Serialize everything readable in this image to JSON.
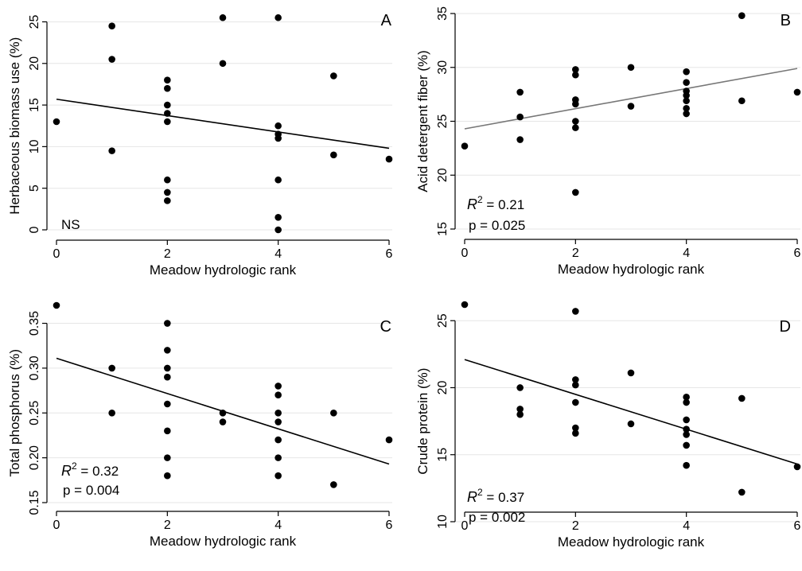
{
  "chart_data": [
    {
      "panel_letter": "A",
      "type": "scatter",
      "xlabel": "Meadow hydrologic rank",
      "ylabel": "Herbaceous biomass use (%)",
      "xlim": [
        0,
        6
      ],
      "ylim": [
        0,
        26
      ],
      "xticks": [
        "0",
        "2",
        "4",
        "6"
      ],
      "yticks": [
        "0",
        "5",
        "10",
        "15",
        "20",
        "25"
      ],
      "grid": "horizontal",
      "points": [
        [
          0,
          13
        ],
        [
          1,
          24.5
        ],
        [
          1,
          20.5
        ],
        [
          1,
          9.5
        ],
        [
          2,
          18
        ],
        [
          2,
          17
        ],
        [
          2,
          15
        ],
        [
          2,
          14
        ],
        [
          2,
          13
        ],
        [
          2,
          6
        ],
        [
          2,
          4.5
        ],
        [
          2,
          3.5
        ],
        [
          3,
          25.5
        ],
        [
          3,
          20
        ],
        [
          4,
          25.5
        ],
        [
          4,
          12.5
        ],
        [
          4,
          11.5
        ],
        [
          4,
          11
        ],
        [
          4,
          6
        ],
        [
          4,
          1.5
        ],
        [
          4,
          0
        ],
        [
          5,
          18.5
        ],
        [
          5,
          9
        ],
        [
          6,
          8.5
        ]
      ],
      "fit_line": {
        "x": [
          0,
          6
        ],
        "y": [
          15.7,
          9.8
        ],
        "color": "#000000"
      },
      "annotation": {
        "r2": "",
        "p": "",
        "ns": "NS"
      }
    },
    {
      "panel_letter": "B",
      "type": "scatter",
      "xlabel": "Meadow hydrologic rank",
      "ylabel": "Acid detergent fiber (%)",
      "xlim": [
        0,
        6
      ],
      "ylim": [
        15,
        35
      ],
      "xticks": [
        "0",
        "2",
        "4",
        "6"
      ],
      "yticks": [
        "15",
        "20",
        "25",
        "30",
        "35"
      ],
      "grid": "horizontal",
      "points": [
        [
          0,
          22.7
        ],
        [
          1,
          27.7
        ],
        [
          1,
          25.4
        ],
        [
          1,
          23.3
        ],
        [
          2,
          29.8
        ],
        [
          2,
          29.3
        ],
        [
          2,
          27
        ],
        [
          2,
          26.6
        ],
        [
          2,
          25
        ],
        [
          2,
          24.4
        ],
        [
          2,
          18.4
        ],
        [
          3,
          30
        ],
        [
          3,
          26.4
        ],
        [
          4,
          29.6
        ],
        [
          4,
          28.6
        ],
        [
          4,
          27.8
        ],
        [
          4,
          27.4
        ],
        [
          4,
          26.9
        ],
        [
          4,
          26.2
        ],
        [
          4,
          25.7
        ],
        [
          5,
          34.8
        ],
        [
          5,
          26.9
        ],
        [
          6,
          27.7
        ]
      ],
      "fit_line": {
        "x": [
          0,
          6
        ],
        "y": [
          24.3,
          29.9
        ],
        "color": "#777777"
      },
      "annotation": {
        "r2": "0.21",
        "p": "p = 0.025",
        "ns": ""
      }
    },
    {
      "panel_letter": "C",
      "type": "scatter",
      "xlabel": "Meadow hydrologic rank",
      "ylabel": "Total phosphorus (%)",
      "xlim": [
        0,
        6
      ],
      "ylim": [
        0.15,
        0.37
      ],
      "xticks": [
        "0",
        "2",
        "4",
        "6"
      ],
      "yticks": [
        "0.15",
        "0.20",
        "0.25",
        "0.30",
        "0.35"
      ],
      "grid": "horizontal",
      "points": [
        [
          0,
          0.37
        ],
        [
          1,
          0.3
        ],
        [
          1,
          0.25
        ],
        [
          2,
          0.35
        ],
        [
          2,
          0.32
        ],
        [
          2,
          0.3
        ],
        [
          2,
          0.29
        ],
        [
          2,
          0.26
        ],
        [
          2,
          0.23
        ],
        [
          2,
          0.2
        ],
        [
          2,
          0.18
        ],
        [
          3,
          0.25
        ],
        [
          3,
          0.24
        ],
        [
          4,
          0.28
        ],
        [
          4,
          0.27
        ],
        [
          4,
          0.25
        ],
        [
          4,
          0.24
        ],
        [
          4,
          0.22
        ],
        [
          4,
          0.2
        ],
        [
          4,
          0.18
        ],
        [
          5,
          0.25
        ],
        [
          5,
          0.17
        ],
        [
          6,
          0.22
        ]
      ],
      "fit_line": {
        "x": [
          0,
          6
        ],
        "y": [
          0.311,
          0.193
        ],
        "color": "#000000"
      },
      "annotation": {
        "r2": "0.32",
        "p": "p = 0.004",
        "ns": ""
      }
    },
    {
      "panel_letter": "D",
      "type": "scatter",
      "xlabel": "Meadow hydrologic rank",
      "ylabel": "Crude protein (%)",
      "xlim": [
        0,
        6
      ],
      "ylim": [
        10,
        26.2
      ],
      "xticks": [
        "0",
        "2",
        "4",
        "6"
      ],
      "yticks": [
        "10",
        "15",
        "20",
        "25"
      ],
      "grid": "horizontal",
      "points": [
        [
          0,
          26.2
        ],
        [
          1,
          20
        ],
        [
          1,
          18.4
        ],
        [
          1,
          18
        ],
        [
          2,
          25.7
        ],
        [
          2,
          20.6
        ],
        [
          2,
          20.2
        ],
        [
          2,
          18.9
        ],
        [
          2,
          17
        ],
        [
          2,
          16.6
        ],
        [
          3,
          21.1
        ],
        [
          3,
          17.3
        ],
        [
          4,
          19.3
        ],
        [
          4,
          18.9
        ],
        [
          4,
          17.6
        ],
        [
          4,
          16.9
        ],
        [
          4,
          16.5
        ],
        [
          4,
          15.7
        ],
        [
          4,
          14.2
        ],
        [
          5,
          19.2
        ],
        [
          5,
          12.2
        ],
        [
          6,
          14.1
        ]
      ],
      "fit_line": {
        "x": [
          0,
          6
        ],
        "y": [
          22.1,
          14.3
        ],
        "color": "#000000"
      },
      "annotation": {
        "r2": "0.37",
        "p": "p = 0.002",
        "ns": ""
      }
    }
  ]
}
